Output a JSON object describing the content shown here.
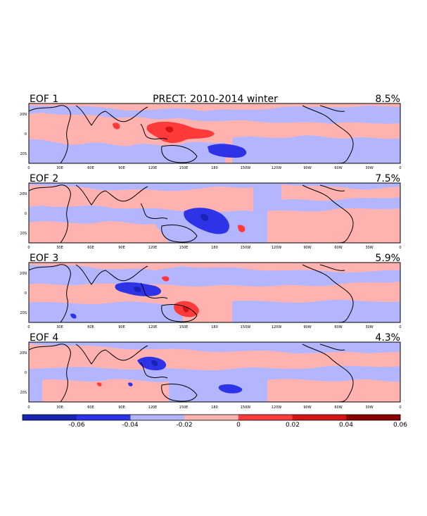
{
  "figure": {
    "title": "PRECT: 2010-2014 winter",
    "lat_ticks": [
      "20N",
      "0",
      "20S"
    ],
    "lon_ticks": [
      "0",
      "30E",
      "60E",
      "90E",
      "120E",
      "150E",
      "180",
      "150W",
      "120W",
      "90W",
      "60W",
      "30W",
      "0"
    ]
  },
  "panels": [
    {
      "label": "EOF 1",
      "variance": "8.5%"
    },
    {
      "label": "EOF 2",
      "variance": "7.5%"
    },
    {
      "label": "EOF 3",
      "variance": "5.9%"
    },
    {
      "label": "EOF 4",
      "variance": "4.3%"
    }
  ],
  "colorbar": {
    "tick_labels": [
      "-0.06",
      "-0.04",
      "-0.02",
      "0",
      "0.02",
      "0.04",
      "0.06"
    ],
    "colors": [
      "#1a24b4",
      "#2f33e8",
      "#b3b6ff",
      "#ffb2b0",
      "#ff3a3a",
      "#d41414",
      "#8a0000"
    ]
  },
  "colors": {
    "positive_light": "#ffb2b0",
    "negative_light": "#b3b6ff",
    "positive_mid": "#ff3a3a",
    "negative_mid": "#2f33e8",
    "negative_strong": "#1a24b4",
    "positive_strong": "#d41414"
  }
}
